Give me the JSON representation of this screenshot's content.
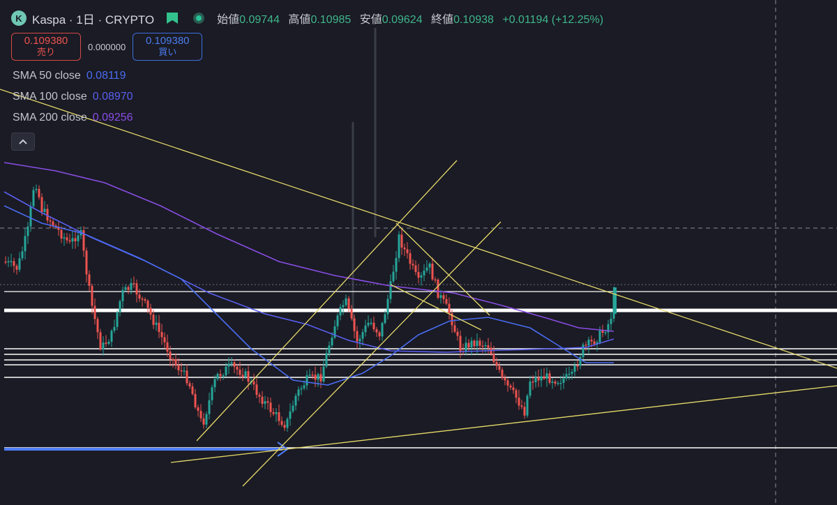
{
  "header": {
    "symbol": "Kaspa · 1日 · CRYPTO",
    "open_label": "始値",
    "open": "0.09744",
    "high_label": "高値",
    "high": "0.10985",
    "low_label": "安値",
    "low": "0.09624",
    "close_label": "終値",
    "close": "0.10938",
    "change": "+0.01194 (+12.25%)"
  },
  "trade": {
    "sell_price": "0.109380",
    "sell_label": "売り",
    "spread": "0.000000",
    "buy_price": "0.109380",
    "buy_label": "買い"
  },
  "indicators": [
    {
      "name": "SMA 50 close",
      "value": "0.08119",
      "color": "#4a6cf2"
    },
    {
      "name": "SMA 100 close",
      "value": "0.08970",
      "color": "#5a5ff0"
    },
    {
      "name": "SMA 200 close",
      "value": "0.09256",
      "color": "#8a4de6"
    }
  ],
  "icons": [
    "kaspa-logo-icon",
    "flag-icon",
    "market-status-icon",
    "collapse-chevron-icon"
  ],
  "colors": {
    "up": "#26a69a",
    "down": "#ef5350",
    "trendline": "#e8da6a",
    "support": "#ffffff",
    "background": "#1a1b24"
  }
}
